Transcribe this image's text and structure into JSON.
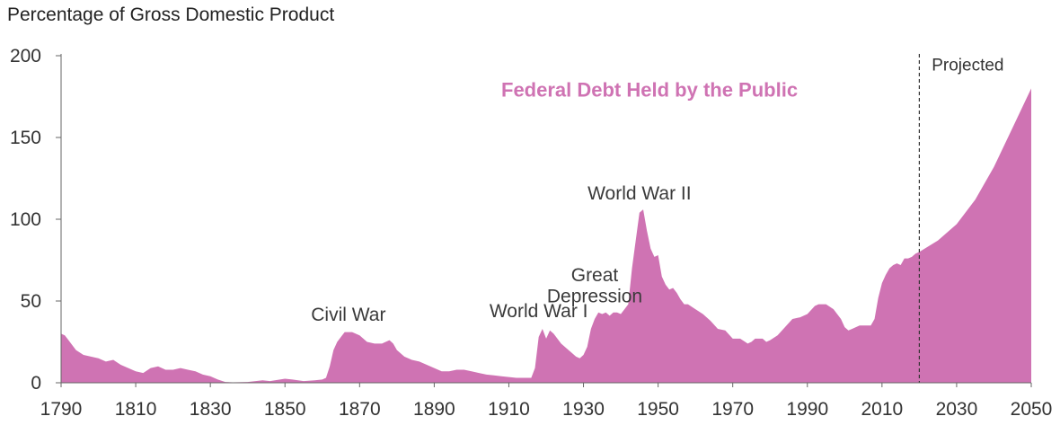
{
  "chart_data": {
    "type": "area",
    "ylabel": "Percentage of Gross Domestic Product",
    "ylim": [
      0,
      200
    ],
    "xlim": [
      1790,
      2050
    ],
    "yticks": [
      0,
      50,
      100,
      150,
      200
    ],
    "xticks": [
      1790,
      1810,
      1830,
      1850,
      1870,
      1890,
      1910,
      1930,
      1950,
      1970,
      1990,
      2010,
      2030,
      2050
    ],
    "grid": false,
    "colors": {
      "series": "#cf73b3",
      "axis": "#666666",
      "projection_line": "#333333"
    },
    "series": [
      {
        "name": "Federal Debt Held by the Public",
        "points": [
          [
            1790,
            30
          ],
          [
            1791,
            29
          ],
          [
            1792,
            26
          ],
          [
            1794,
            20
          ],
          [
            1796,
            17
          ],
          [
            1798,
            16
          ],
          [
            1800,
            15
          ],
          [
            1802,
            13
          ],
          [
            1804,
            14
          ],
          [
            1806,
            11
          ],
          [
            1808,
            9
          ],
          [
            1810,
            7
          ],
          [
            1812,
            6
          ],
          [
            1814,
            9
          ],
          [
            1816,
            10
          ],
          [
            1818,
            8
          ],
          [
            1820,
            8
          ],
          [
            1822,
            9
          ],
          [
            1824,
            8
          ],
          [
            1826,
            7
          ],
          [
            1828,
            5
          ],
          [
            1830,
            4
          ],
          [
            1832,
            2
          ],
          [
            1834,
            0.5
          ],
          [
            1836,
            0.3
          ],
          [
            1840,
            0.5
          ],
          [
            1844,
            1.5
          ],
          [
            1846,
            1
          ],
          [
            1850,
            2.5
          ],
          [
            1852,
            2
          ],
          [
            1855,
            1
          ],
          [
            1858,
            1.5
          ],
          [
            1860,
            2
          ],
          [
            1861,
            3
          ],
          [
            1862,
            10
          ],
          [
            1863,
            20
          ],
          [
            1864,
            25
          ],
          [
            1865,
            28
          ],
          [
            1866,
            31
          ],
          [
            1868,
            31
          ],
          [
            1870,
            29
          ],
          [
            1872,
            25
          ],
          [
            1874,
            24
          ],
          [
            1876,
            24
          ],
          [
            1878,
            26
          ],
          [
            1879,
            24
          ],
          [
            1880,
            20
          ],
          [
            1882,
            16
          ],
          [
            1884,
            14
          ],
          [
            1886,
            13
          ],
          [
            1888,
            11
          ],
          [
            1890,
            9
          ],
          [
            1892,
            7
          ],
          [
            1894,
            7
          ],
          [
            1896,
            8
          ],
          [
            1898,
            8
          ],
          [
            1900,
            7
          ],
          [
            1902,
            6
          ],
          [
            1904,
            5
          ],
          [
            1906,
            4.5
          ],
          [
            1908,
            4
          ],
          [
            1910,
            3.5
          ],
          [
            1912,
            3
          ],
          [
            1914,
            3
          ],
          [
            1916,
            3
          ],
          [
            1917,
            9
          ],
          [
            1918,
            28
          ],
          [
            1919,
            33
          ],
          [
            1920,
            27
          ],
          [
            1921,
            32
          ],
          [
            1922,
            30
          ],
          [
            1924,
            24
          ],
          [
            1926,
            20
          ],
          [
            1928,
            16
          ],
          [
            1929,
            15
          ],
          [
            1930,
            17
          ],
          [
            1931,
            22
          ],
          [
            1932,
            33
          ],
          [
            1933,
            39
          ],
          [
            1934,
            43
          ],
          [
            1935,
            42
          ],
          [
            1936,
            43
          ],
          [
            1937,
            41
          ],
          [
            1938,
            43
          ],
          [
            1939,
            43
          ],
          [
            1940,
            42
          ],
          [
            1941,
            45
          ],
          [
            1942,
            48
          ],
          [
            1943,
            70
          ],
          [
            1944,
            87
          ],
          [
            1945,
            104
          ],
          [
            1946,
            106
          ],
          [
            1947,
            93
          ],
          [
            1948,
            82
          ],
          [
            1949,
            77
          ],
          [
            1950,
            78
          ],
          [
            1951,
            65
          ],
          [
            1952,
            60
          ],
          [
            1953,
            57
          ],
          [
            1954,
            58
          ],
          [
            1955,
            55
          ],
          [
            1956,
            51
          ],
          [
            1957,
            48
          ],
          [
            1958,
            48
          ],
          [
            1960,
            45
          ],
          [
            1962,
            42
          ],
          [
            1964,
            38
          ],
          [
            1966,
            33
          ],
          [
            1968,
            32
          ],
          [
            1970,
            27
          ],
          [
            1972,
            27
          ],
          [
            1974,
            24
          ],
          [
            1975,
            25
          ],
          [
            1976,
            27
          ],
          [
            1978,
            27
          ],
          [
            1979,
            25
          ],
          [
            1980,
            26
          ],
          [
            1982,
            29
          ],
          [
            1984,
            34
          ],
          [
            1986,
            39
          ],
          [
            1988,
            40
          ],
          [
            1990,
            42
          ],
          [
            1992,
            47
          ],
          [
            1993,
            48
          ],
          [
            1995,
            48
          ],
          [
            1997,
            45
          ],
          [
            1999,
            39
          ],
          [
            2000,
            34
          ],
          [
            2001,
            32
          ],
          [
            2002,
            33
          ],
          [
            2004,
            35
          ],
          [
            2006,
            35
          ],
          [
            2007,
            35
          ],
          [
            2008,
            39
          ],
          [
            2009,
            52
          ],
          [
            2010,
            61
          ],
          [
            2011,
            66
          ],
          [
            2012,
            70
          ],
          [
            2013,
            72
          ],
          [
            2014,
            73
          ],
          [
            2015,
            72
          ],
          [
            2016,
            76
          ],
          [
            2017,
            76
          ],
          [
            2018,
            77
          ],
          [
            2019,
            79
          ],
          [
            2020,
            80
          ],
          [
            2025,
            87
          ],
          [
            2030,
            97
          ],
          [
            2035,
            112
          ],
          [
            2040,
            132
          ],
          [
            2045,
            156
          ],
          [
            2050,
            180
          ]
        ]
      }
    ],
    "projection_start": 2020,
    "annotations": [
      {
        "lines": [
          "Civil War"
        ],
        "x": 1867,
        "y": 38
      },
      {
        "lines": [
          "World War I"
        ],
        "x": 1918,
        "y": 40
      },
      {
        "lines": [
          "Great",
          "Depression"
        ],
        "x": 1933,
        "y": 62
      },
      {
        "lines": [
          "World War II"
        ],
        "x": 1945,
        "y": 112
      },
      {
        "lines": [
          "Projected"
        ],
        "x": 2033,
        "y": 191
      }
    ],
    "series_label": {
      "text": "Federal Debt Held by the Public",
      "x": 1920,
      "y": 175
    }
  }
}
